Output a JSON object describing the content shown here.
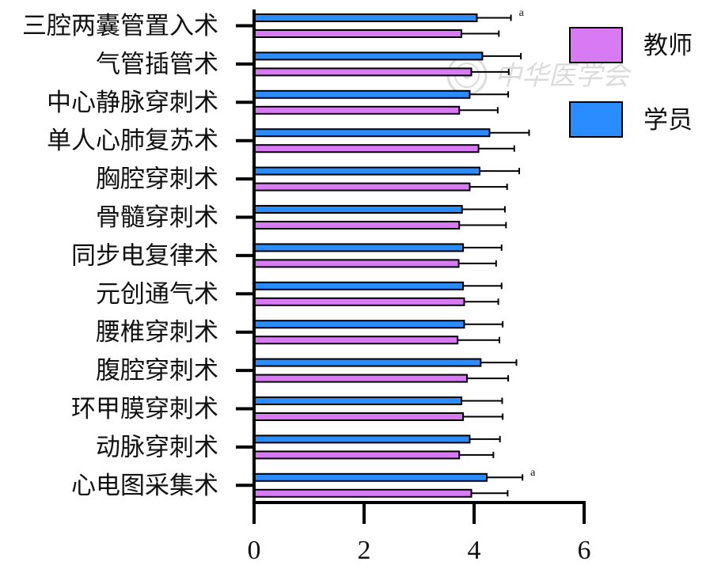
{
  "chart_data": {
    "type": "bar",
    "orientation": "horizontal",
    "categories": [
      "三腔两囊管置入术",
      "气管插管术",
      "中心静脉穿刺术",
      "单人心肺复苏术",
      "胸腔穿刺术",
      "骨髓穿刺术",
      "同步电复律术",
      "元创通气术",
      "腰椎穿刺术",
      "腹腔穿刺术",
      "环甲膜穿刺术",
      "动脉穿刺术",
      "心电图采集术"
    ],
    "series": [
      {
        "name": "学员",
        "color": "#2a8cff",
        "values": [
          4.05,
          4.15,
          3.92,
          4.28,
          4.1,
          3.78,
          3.8,
          3.8,
          3.82,
          4.12,
          3.77,
          3.92,
          4.23
        ],
        "errors": [
          0.62,
          0.7,
          0.7,
          0.72,
          0.72,
          0.78,
          0.7,
          0.7,
          0.7,
          0.65,
          0.74,
          0.55,
          0.65
        ]
      },
      {
        "name": "教师",
        "color": "#d97af5",
        "values": [
          3.77,
          3.95,
          3.73,
          4.08,
          3.92,
          3.73,
          3.72,
          3.82,
          3.7,
          3.87,
          3.8,
          3.73,
          3.95
        ],
        "errors": [
          0.68,
          0.68,
          0.7,
          0.65,
          0.68,
          0.85,
          0.68,
          0.62,
          0.76,
          0.75,
          0.72,
          0.62,
          0.66
        ]
      }
    ],
    "xticks": [
      0,
      2,
      4,
      6
    ],
    "xlim": [
      0,
      6
    ],
    "grid": false,
    "legend_position": "top-right",
    "annotations": [
      {
        "text": "a",
        "category": "三腔两囊管置入术",
        "series": "学员"
      },
      {
        "text": "a",
        "category": "心电图采集术",
        "series": "学员"
      }
    ]
  },
  "watermark": {
    "text": "中华医学会",
    "icon": "seal-icon"
  }
}
